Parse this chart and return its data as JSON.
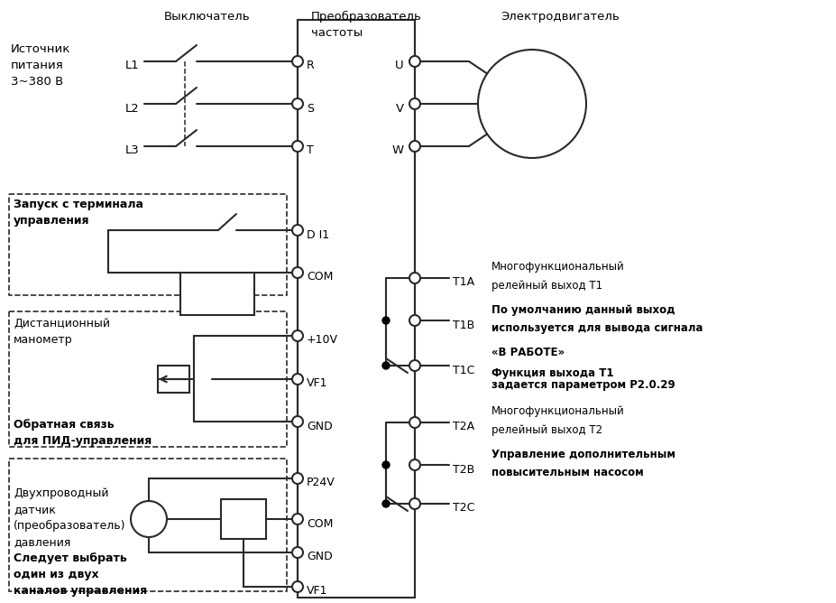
{
  "bg_color": "#ffffff",
  "lc": "#2a2a2a",
  "figsize": [
    9.28,
    6.68
  ],
  "dpi": 100,
  "label_vykl": "Выключатель",
  "label_preobr": "Преобразователь\nчастоты",
  "label_elektro": "Электродвигатель",
  "label_istochnik": "Источник\nпитания\n3~380 В",
  "label_zapusk": "Запуск с терминала\nуправления",
  "label_distan": "Дистанционный\nманометр",
  "label_obr": "Обратная связь\nдля ПИД-управления",
  "label_dvuh": "Двухпроводный\nдатчик\n(преобразователь)\nдавления",
  "label_sled": "Следует выбрать\nодин из двух\nканалов управления",
  "T1_l1": "Многофункциональный",
  "T1_l2": "релейный выход Т1",
  "T1_b1": "По умолчанию данный выход",
  "T1_b2": "используется для вывода сигнала",
  "T1_b3": "«В РАБОТЕ»",
  "T1_b4": "Функция выхода Т1",
  "T1_b5": "задается параметром Р2.0.29",
  "T2_l1": "Многофункциональный",
  "T2_l2": "релейный выход Т2",
  "T2_b1": "Управление дополнительным",
  "T2_b2": "повысительным насосом"
}
